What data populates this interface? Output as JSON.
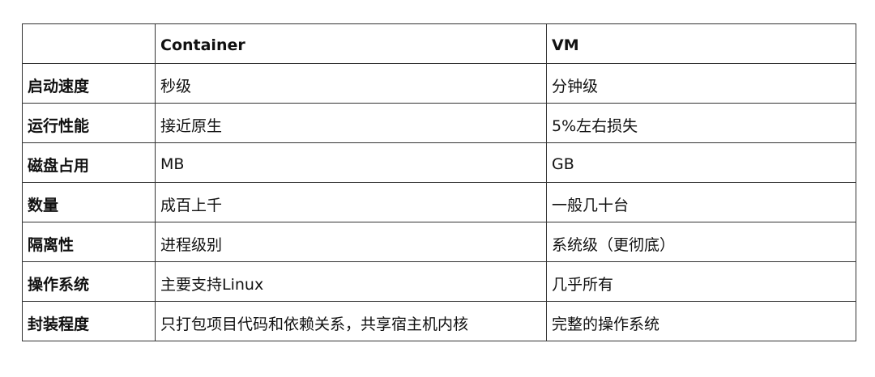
{
  "table": {
    "headers": [
      "",
      "Container",
      "VM"
    ],
    "rows": [
      [
        "启动速度",
        "秒级",
        "分钟级"
      ],
      [
        "运行性能",
        "接近原生",
        "5%左右损失"
      ],
      [
        "磁盘占用",
        "MB",
        "GB"
      ],
      [
        "数量",
        "成百上千",
        "一般几十台"
      ],
      [
        "隔离性",
        "进程级别",
        "系统级（更彻底）"
      ],
      [
        "操作系统",
        "主要支持Linux",
        "几乎所有"
      ],
      [
        "封装程度",
        "只打包项目代码和依赖关系，共享宿主机内核",
        "完整的操作系统"
      ]
    ]
  }
}
